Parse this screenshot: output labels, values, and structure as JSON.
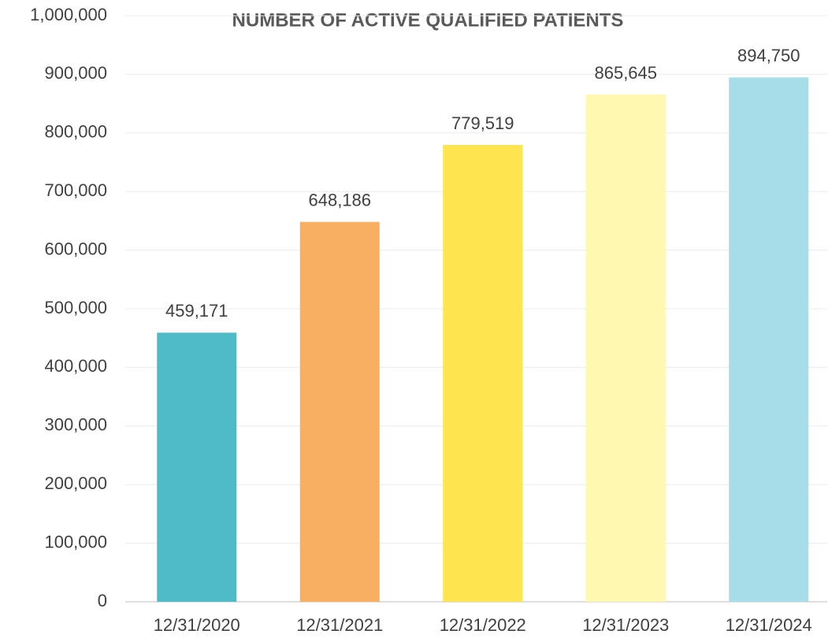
{
  "chart_data": {
    "type": "bar",
    "title": "NUMBER OF ACTIVE QUALIFIED PATIENTS",
    "categories": [
      "12/31/2020",
      "12/31/2021",
      "12/31/2022",
      "12/31/2023",
      "12/31/2024"
    ],
    "values": [
      459171,
      648186,
      779519,
      865645,
      894750
    ],
    "value_labels": [
      "459,171",
      "648,186",
      "779,519",
      "865,645",
      "894,750"
    ],
    "colors": [
      "#4fbbc8",
      "#f8af62",
      "#fee54f",
      "#fef8b0",
      "#a6dde9"
    ],
    "ylim": [
      0,
      1000000
    ],
    "yticks": [
      0,
      {
        "value": 100000,
        "label": "100,000"
      },
      {
        "value": 200000,
        "label": "200,000"
      },
      {
        "value": 300000,
        "label": "300,000"
      },
      {
        "value": 400000,
        "label": "400,000"
      },
      {
        "value": 500000,
        "label": "500,000"
      },
      {
        "value": 600000,
        "label": "600,000"
      },
      {
        "value": 700000,
        "label": "700,000"
      },
      {
        "value": 800000,
        "label": "800,000"
      },
      {
        "value": 900000,
        "label": "900,000"
      },
      {
        "value": 1000000,
        "label": "1,000,000"
      }
    ],
    "grid": true
  }
}
